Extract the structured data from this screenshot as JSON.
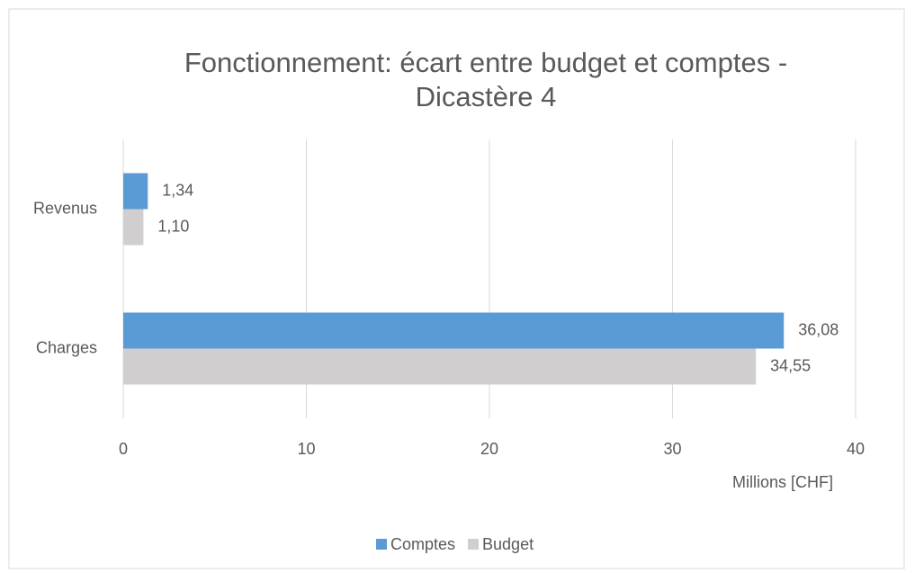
{
  "chart_data": {
    "type": "hbar",
    "title": "Fonctionnement: écart entre budget et comptes -",
    "subtitle": "Dicastère 4",
    "categories": [
      "Revenus",
      "Charges"
    ],
    "series": [
      {
        "name": "Comptes",
        "color": "#5b9bd5",
        "values": [
          1.34,
          36.08
        ],
        "value_labels": [
          "1,34",
          "36,08"
        ]
      },
      {
        "name": "Budget",
        "color": "#d0cece",
        "values": [
          1.1,
          34.55
        ],
        "value_labels": [
          "1,10",
          "34,55"
        ]
      }
    ],
    "xlabel": "Millions [CHF]",
    "xlim": [
      0,
      40
    ],
    "xticks": [
      0,
      10,
      20,
      30,
      40
    ],
    "grid": true,
    "legend": "bottom"
  }
}
